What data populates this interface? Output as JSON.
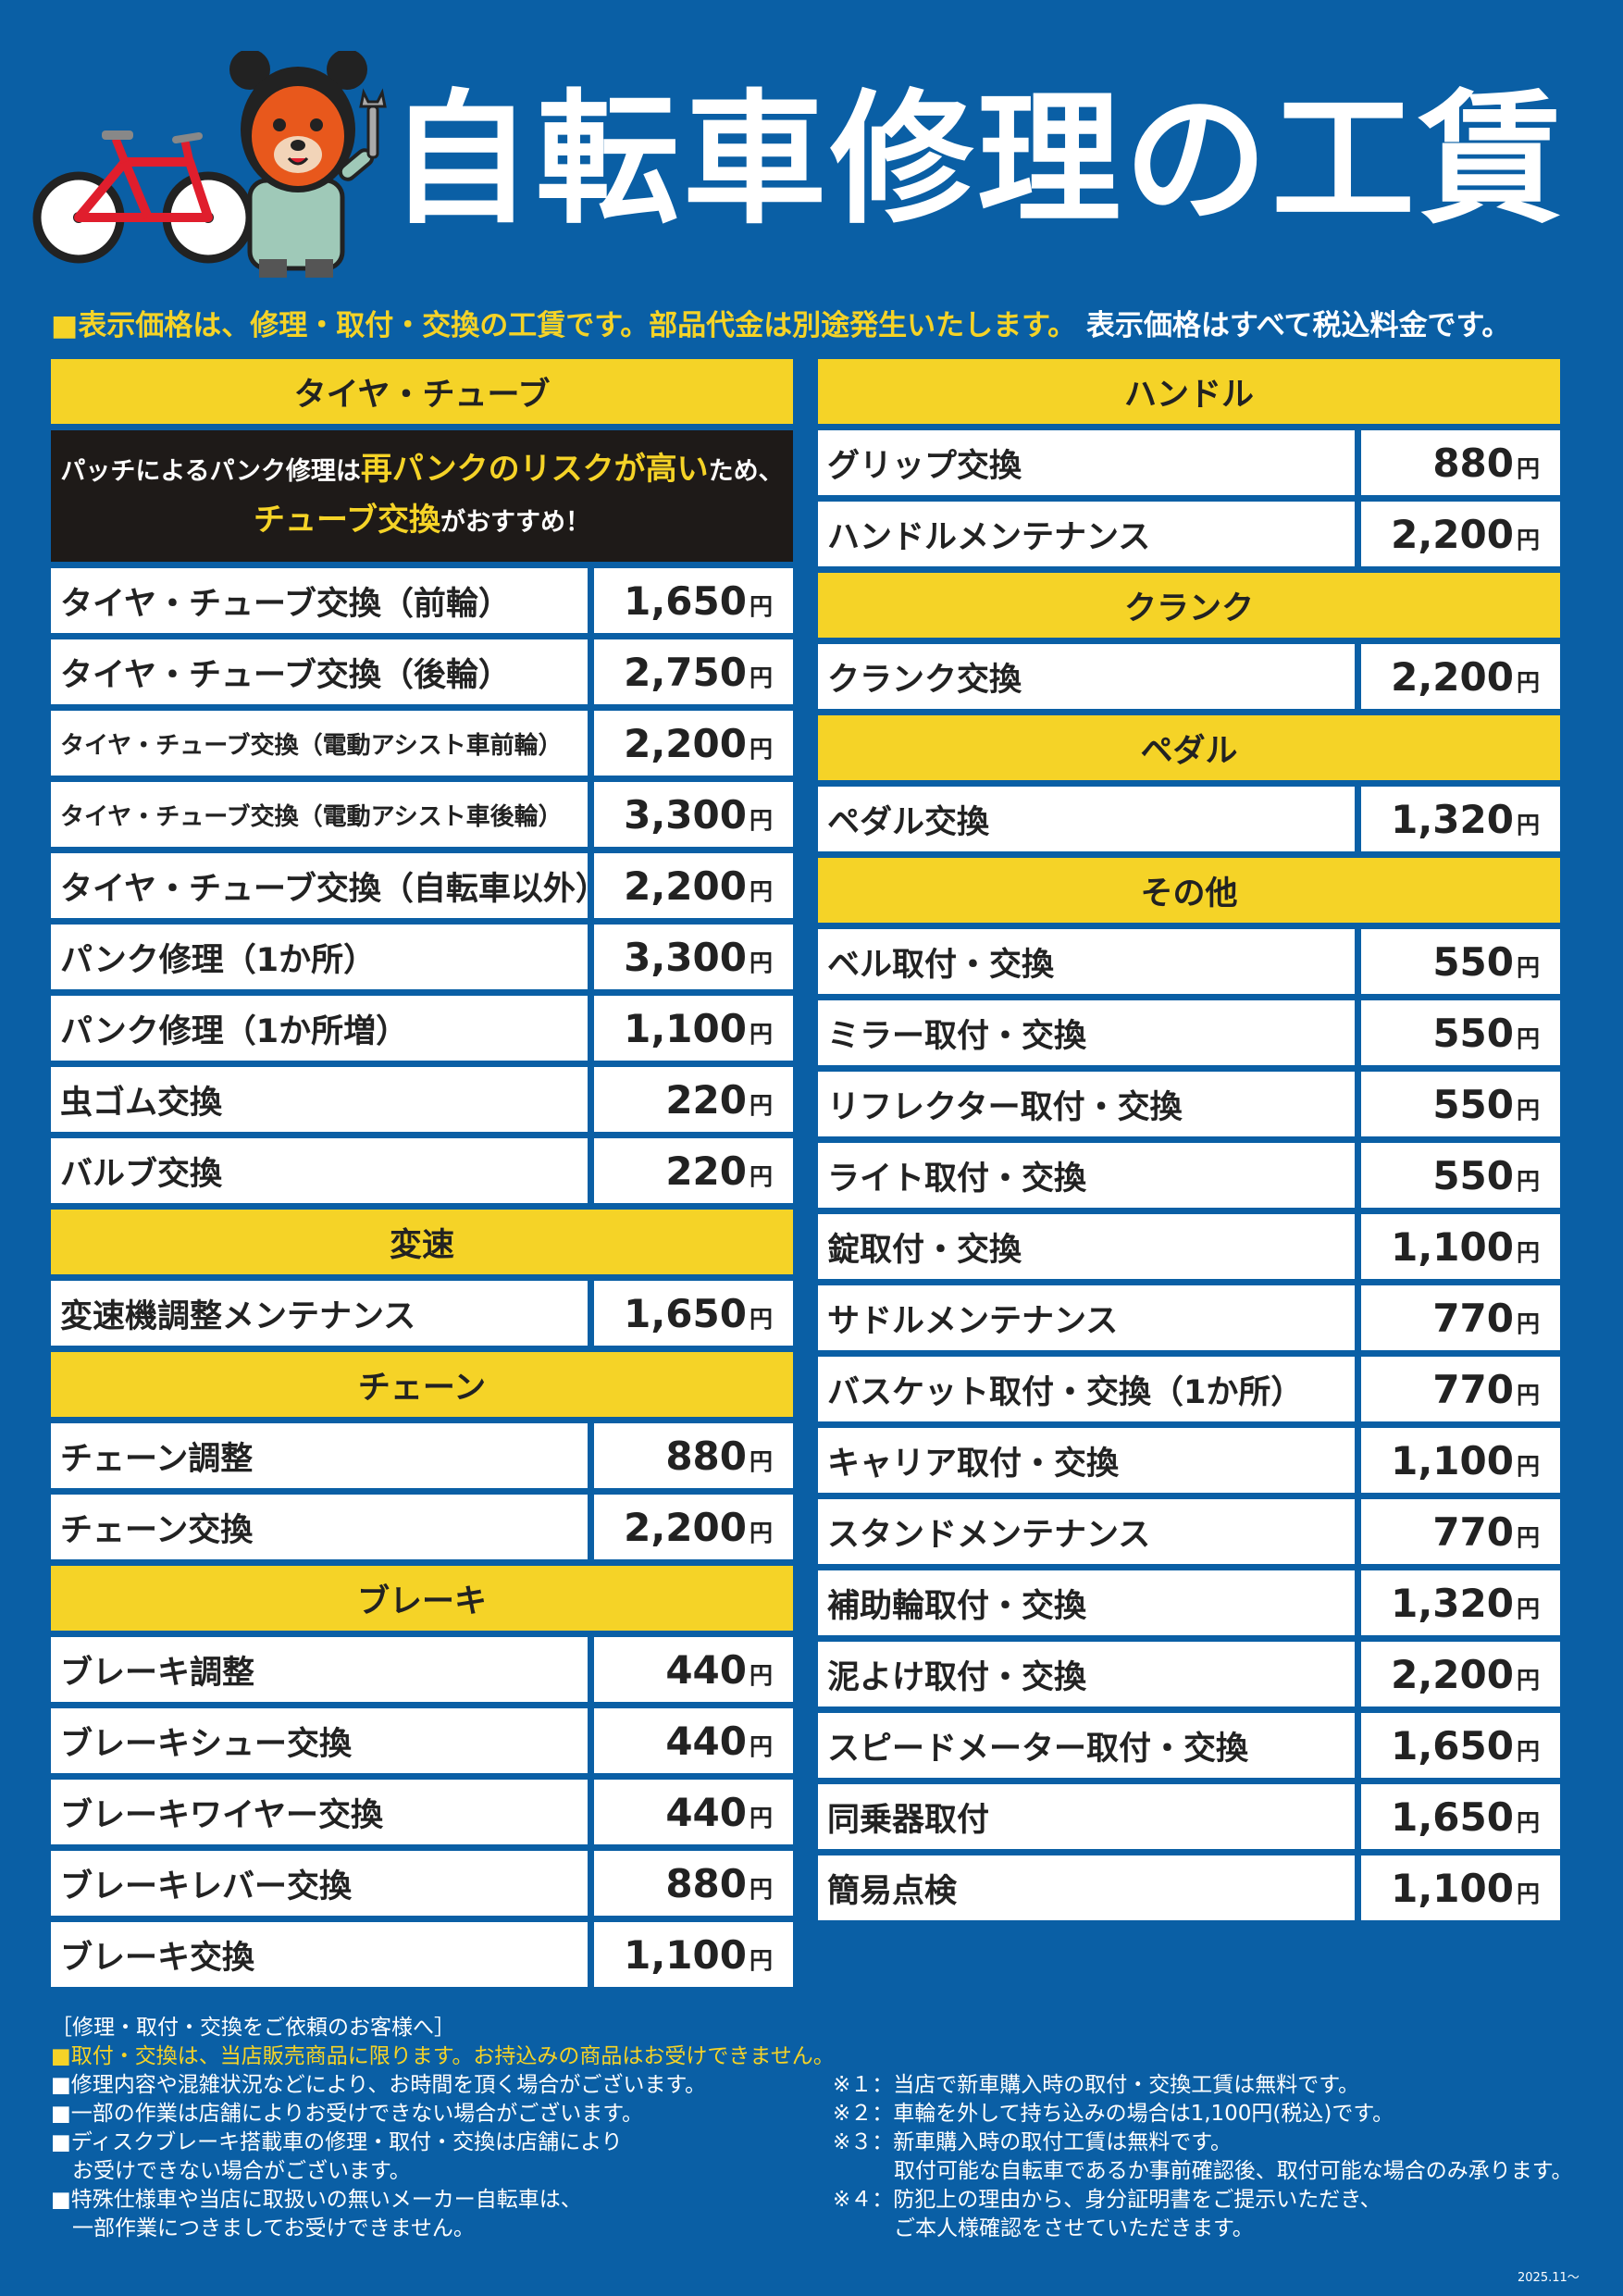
{
  "header": {
    "title": "自転車修理の工賃"
  },
  "notice": {
    "part1": "■表示価格は、修理・取付・交換の工賃です。部品代金は別途発生いたします。",
    "part2": "表示価格はすべて税込料金です。"
  },
  "yen": "円",
  "left": {
    "tire_header": "タイヤ・チューブ",
    "tire_note": {
      "a": "パッチによるパンク修理は",
      "b": "再パンクのリスクが高い",
      "c": "ため、",
      "d": "チューブ交換",
      "e": "がおすすめ！"
    },
    "tire_items": [
      {
        "name": "タイヤ・チューブ交換（前輪）",
        "price": "1,650"
      },
      {
        "name": "タイヤ・チューブ交換（後輪）",
        "price": "2,750"
      },
      {
        "name": "タイヤ・チューブ交換（電動アシスト車前輪）",
        "price": "2,200"
      },
      {
        "name": "タイヤ・チューブ交換（電動アシスト車後輪）",
        "price": "3,300"
      },
      {
        "name": "タイヤ・チューブ交換（自転車以外）",
        "price": "2,200"
      },
      {
        "name": "パンク修理（1か所）",
        "price": "3,300"
      },
      {
        "name": "パンク修理（1か所増）",
        "price": "1,100"
      },
      {
        "name": "虫ゴム交換",
        "price": "220"
      },
      {
        "name": "バルブ交換",
        "price": "220"
      }
    ],
    "shift_header": "変速",
    "shift_items": [
      {
        "name": "変速機調整メンテナンス",
        "price": "1,650"
      }
    ],
    "chain_header": "チェーン",
    "chain_items": [
      {
        "name": "チェーン調整",
        "price": "880"
      },
      {
        "name": "チェーン交換",
        "price": "2,200"
      }
    ],
    "brake_header": "ブレーキ",
    "brake_items": [
      {
        "name": "ブレーキ調整",
        "price": "440"
      },
      {
        "name": "ブレーキシュー交換",
        "price": "440"
      },
      {
        "name": "ブレーキワイヤー交換",
        "price": "440"
      },
      {
        "name": "ブレーキレバー交換",
        "price": "880"
      },
      {
        "name": "ブレーキ交換",
        "price": "1,100"
      }
    ]
  },
  "right": {
    "handle_header": "ハンドル",
    "handle_items": [
      {
        "name": "グリップ交換",
        "price": "880"
      },
      {
        "name": "ハンドルメンテナンス",
        "price": "2,200"
      }
    ],
    "crank_header": "クランク",
    "crank_items": [
      {
        "name": "クランク交換",
        "price": "2,200"
      }
    ],
    "pedal_header": "ペダル",
    "pedal_items": [
      {
        "name": "ペダル交換",
        "price": "1,320"
      }
    ],
    "other_header": "その他",
    "other_items": [
      {
        "name": "ベル取付・交換",
        "price": "550"
      },
      {
        "name": "ミラー取付・交換",
        "price": "550"
      },
      {
        "name": "リフレクター取付・交換",
        "price": "550"
      },
      {
        "name": "ライト取付・交換",
        "price": "550"
      },
      {
        "name": "錠取付・交換",
        "price": "1,100"
      },
      {
        "name": "サドルメンテナンス",
        "price": "770"
      },
      {
        "name": "バスケット取付・交換（1か所）",
        "price": "770"
      },
      {
        "name": "キャリア取付・交換",
        "price": "1,100"
      },
      {
        "name": "スタンドメンテナンス",
        "price": "770"
      },
      {
        "name": "補助輪取付・交換",
        "price": "1,320"
      },
      {
        "name": "泥よけ取付・交換",
        "price": "2,200"
      },
      {
        "name": "スピードメーター取付・交換",
        "price": "1,650"
      },
      {
        "name": "同乗器取付",
        "price": "1,650"
      },
      {
        "name": "簡易点検",
        "price": "1,100"
      }
    ]
  },
  "footer": {
    "heading": "［修理・取付・交換をご依頼のお客様へ］",
    "yellow_line": "■取付・交換は、当店販売商品に限ります。お持込みの商品はお受けできません。",
    "left_lines": [
      "■修理内容や混雑状況などにより、お時間を頂く場合がございます。",
      "■一部の作業は店舗によりお受けできない場合がございます。",
      "■ディスクブレーキ搭載車の修理・取付・交換は店舗により",
      "お受けできない場合がございます。",
      "■特殊仕様車や当店に取扱いの無いメーカー自転車は、",
      "一部作業につきましてお受けできません。"
    ],
    "right_lines": [
      "※１：当店で新車購入時の取付・交換工賃は無料です。",
      "※２：車輪を外して持ち込みの場合は1,100円(税込)です。",
      "※３：新車購入時の取付工賃は無料です。",
      "取付可能な自転車であるか事前確認後、取付可能な場合のみ承ります。",
      "※４：防犯上の理由から、身分証明書をご提示いただき、",
      "ご本人様確認をさせていただきます。"
    ],
    "date": "2025.11～"
  }
}
